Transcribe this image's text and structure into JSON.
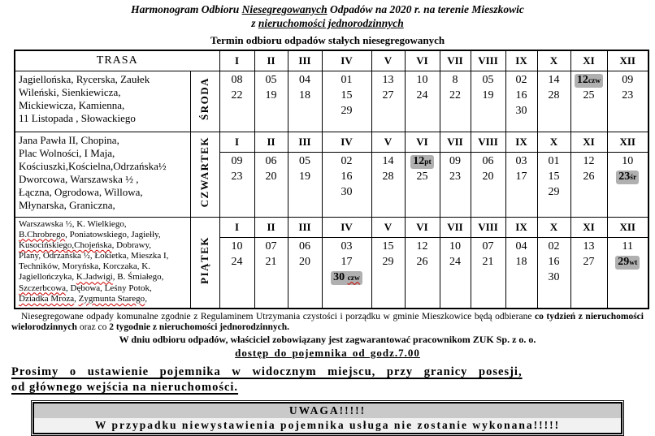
{
  "title": {
    "l1a": "Harmonogram  Odbioru ",
    "l1u": "Niesegregowanych",
    "l1b": " Odpadów na 2020 r. na terenie Mieszkowic",
    "l2a": "z ",
    "l2u": "nieruchomości jednorodzinnych"
  },
  "subtitle": "Termin odbioru odpadów stałych niesegregowanych",
  "table": {
    "trasa_label": "TRASA",
    "months": [
      "I",
      "II",
      "III",
      "IV",
      "V",
      "VI",
      "VII",
      "VIII",
      "IX",
      "X",
      "XI",
      "XII"
    ],
    "sections": [
      {
        "day": "ŚRODA",
        "streets": [
          {
            "t": "Jagiellońska,  Rycerska, Zaułek\nWileński, Sienkiewicza,\nMickiewicza,  Kamienna,\n11 Listopada , Słowackiego"
          }
        ],
        "dates": [
          [
            "08",
            "22"
          ],
          [
            "05",
            "19"
          ],
          [
            "04",
            "18"
          ],
          [
            "01",
            "15",
            "29"
          ],
          [
            "13",
            "27"
          ],
          [
            "10",
            "24"
          ],
          [
            "8",
            "22"
          ],
          [
            "05",
            "19"
          ],
          [
            "02",
            "16",
            "30"
          ],
          [
            "14",
            "28"
          ],
          [
            {
              "t": "12",
              "s": "czw",
              "hl": true
            },
            "25"
          ],
          [
            "09",
            "23"
          ]
        ]
      },
      {
        "day": "CZWARTEK",
        "streets": [
          {
            "t": "Jana Pawła II,  Chopina,\nPlac Wolności, I Maja,\nKościuszki,Kościelna,Odrzańska½\nDworcowa, Warszawska ½ ,\nŁączna, Ogrodowa, Willowa,\nMłynarska,  Graniczna,"
          }
        ],
        "dates": [
          [
            "09",
            "23"
          ],
          [
            "06",
            "20"
          ],
          [
            "05",
            "19"
          ],
          [
            "02",
            "16",
            "30"
          ],
          [
            "14",
            "28"
          ],
          [
            {
              "t": "12",
              "s": "pt",
              "hl": true
            },
            "25"
          ],
          [
            "09",
            "23"
          ],
          [
            "06",
            "20"
          ],
          [
            "03",
            "17"
          ],
          [
            "01",
            "15",
            "29"
          ],
          [
            "12",
            "26"
          ],
          [
            "10",
            {
              "t": "23",
              "s": "śr",
              "hl": true
            }
          ]
        ]
      },
      {
        "day": "PIĄTEK",
        "streets": [
          {
            "t": "Warszawska ½, K. Wielkiego,\n"
          },
          {
            "t": "B.Chrobrego",
            "sq": true
          },
          {
            "t": ", Poniatowskiego, Jagiełły,\n"
          },
          {
            "t": "Kusocińskiego,Chojeńska",
            "sq": true
          },
          {
            "t": ", Dobrawy,\nPlany, Odrzańska ½, Łokietka,  Mieszka I,\nTechników, Moryńska, Korczaka, K.\nJagiellończyka, "
          },
          {
            "t": "K.Jadwigi",
            "sq": true
          },
          {
            "t": ",   B. Śmiałego,\n"
          },
          {
            "t": "Szczerbcowa",
            "sq": true
          },
          {
            "t": ", Dębowa, Leśny Potok,\n"
          },
          {
            "t": "Dziadka Mroza",
            "sq": true
          },
          {
            "t": ", "
          },
          {
            "t": "Zygmunta Starego",
            "sq": true
          },
          {
            "t": ","
          }
        ],
        "dates": [
          [
            "10",
            "24"
          ],
          [
            "07",
            "21"
          ],
          [
            "06",
            "20"
          ],
          [
            "03",
            "17",
            {
              "t": "30",
              "s": "czw",
              "hl": true,
              "sp": true,
              "sq": true
            }
          ],
          [
            "15",
            "29"
          ],
          [
            "12",
            "26"
          ],
          [
            "10",
            "24"
          ],
          [
            "07",
            "21"
          ],
          [
            "04",
            "18"
          ],
          [
            "02",
            "16",
            "30"
          ],
          [
            "13",
            "27"
          ],
          [
            "11",
            {
              "t": "29",
              "s": "wt",
              "hl": true
            }
          ]
        ]
      }
    ]
  },
  "notes": {
    "p1": [
      {
        "t": "Niesegregowane odpady komunalne zgodnie z Regulaminem Utrzymania czystości i porządku w gminie Mieszkowice będą odbierane "
      },
      {
        "t": "co tydzień z nieruchomości wielorodzinnych",
        "b": true
      },
      {
        "t": " oraz co "
      },
      {
        "t": "2 tygodnie z nieruchomości jednorodzinnych.",
        "b": true
      }
    ],
    "p2": "W dniu odbioru odpadów, właściciel zobowiązany jest zagwarantować pracownikom ZUK Sp. z o. o.",
    "p3": "dostęp do pojemnika od godz.7.00"
  },
  "request": {
    "line1": "Prosimy o ustawienie pojemnika w widocznym miejscu, przy granicy posesji,",
    "line2": "od głównego wejścia na nieruchomości."
  },
  "warning": {
    "line1": "UWAGA!!!!!",
    "line2": "W przypadku niewystawienia pojemnika usługa nie zostanie wykonana!!!!!"
  },
  "colors": {
    "highlight": "#b0b0b0",
    "squiggle": "#cc0000",
    "warn_band": "#c9c9c9",
    "warn_inner": "#f1f1f1"
  }
}
